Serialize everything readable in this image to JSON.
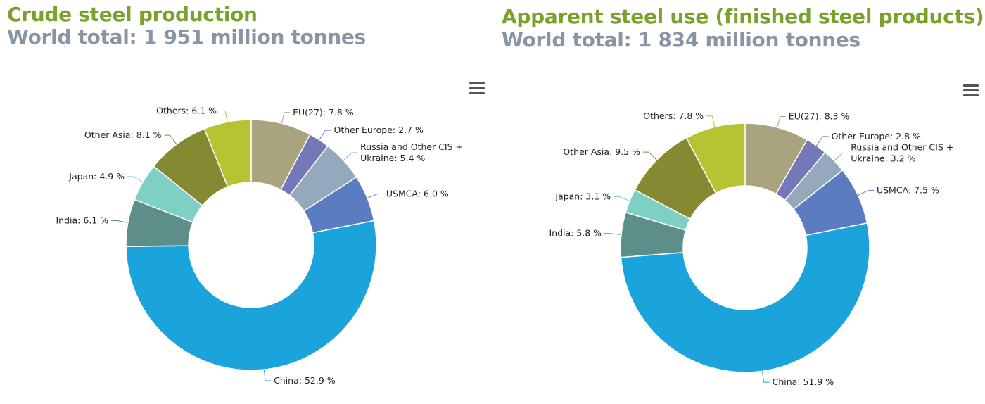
{
  "panels": [
    {
      "title": "Crude steel production",
      "subtitle": "World total: 1 951 million tonnes",
      "menu_icon": "hamburger-menu-icon"
    },
    {
      "title": "Apparent steel use (finished steel products)",
      "subtitle": "World total: 1 834 million tonnes",
      "menu_icon": "hamburger-menu-icon"
    }
  ],
  "colors": {
    "title": "#7aa22a",
    "subtitle": "#8795a4",
    "EU(27)": "#a9a37f",
    "Other Europe": "#7477b8",
    "Russia and Other CIS + Ukraine": "#94a9bc",
    "USMCA": "#5b7cc0",
    "China": "#1ba3dc",
    "India": "#5e8e89",
    "Japan": "#7dd0c3",
    "Other Asia": "#858a32",
    "Others": "#b6c433"
  },
  "chart_data": [
    {
      "type": "pie",
      "donut": true,
      "categories": [
        "EU(27)",
        "Other Europe",
        "Russia and Other CIS + Ukraine",
        "USMCA",
        "China",
        "India",
        "Japan",
        "Other Asia",
        "Others"
      ],
      "values": [
        7.8,
        2.7,
        5.4,
        6.0,
        52.9,
        6.1,
        4.9,
        8.1,
        6.1
      ],
      "labels": [
        [
          "EU(27): 7.8 %"
        ],
        [
          "Other Europe: 2.7 %"
        ],
        [
          "Russia and Other CIS +",
          "Ukraine: 5.4 %"
        ],
        [
          "USMCA: 6.0 %"
        ],
        [
          "China: 52.9 %"
        ],
        [
          "India: 6.1 %"
        ],
        [
          "Japan: 4.9 %"
        ],
        [
          "Other Asia: 8.1 %"
        ],
        [
          "Others: 6.1 %"
        ]
      ],
      "unit": "%"
    },
    {
      "type": "pie",
      "donut": true,
      "categories": [
        "EU(27)",
        "Other Europe",
        "Russia and Other CIS + Ukraine",
        "USMCA",
        "China",
        "India",
        "Japan",
        "Other Asia",
        "Others"
      ],
      "values": [
        8.3,
        2.8,
        3.2,
        7.5,
        51.9,
        5.8,
        3.1,
        9.5,
        7.8
      ],
      "labels": [
        [
          "EU(27): 8.3 %"
        ],
        [
          "Other Europe: 2.8 %"
        ],
        [
          "Russia and Other CIS +",
          "Ukraine: 3.2 %"
        ],
        [
          "USMCA: 7.5 %"
        ],
        [
          "China: 51.9 %"
        ],
        [
          "India: 5.8 %"
        ],
        [
          "Japan: 3.1 %"
        ],
        [
          "Other Asia: 9.5 %"
        ],
        [
          "Others: 7.8 %"
        ]
      ],
      "unit": "%"
    }
  ]
}
